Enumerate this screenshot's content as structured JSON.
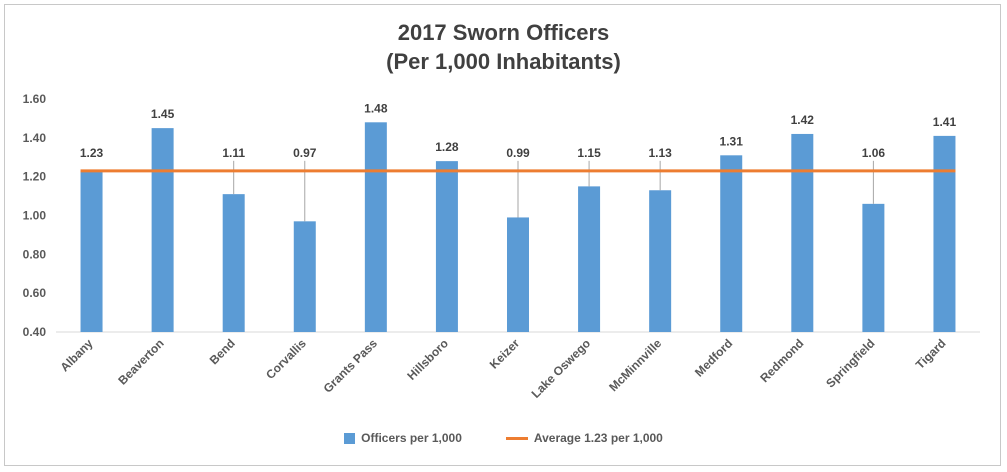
{
  "chart_data": {
    "type": "bar",
    "title_line1": "2017 Sworn Officers",
    "title_line2": "(Per 1,000 Inhabitants)",
    "categories": [
      "Albany",
      "Beaverton",
      "Bend",
      "Corvallis",
      "Grants Pass",
      "Hillsboro",
      "Keizer",
      "Lake Oswego",
      "McMinnville",
      "Medford",
      "Redmond",
      "Springfield",
      "Tigard"
    ],
    "series": [
      {
        "name": "Officers per 1,000",
        "values": [
          1.23,
          1.45,
          1.11,
          0.97,
          1.48,
          1.28,
          0.99,
          1.15,
          1.13,
          1.31,
          1.42,
          1.06,
          1.41
        ],
        "labels": [
          "1.23",
          "1.45",
          "1.11",
          "0.97",
          "1.48",
          "1.28",
          "0.99",
          "1.15",
          "1.13",
          "1.31",
          "1.42",
          "1.06",
          "1.41"
        ]
      }
    ],
    "reference_line": {
      "name": "Average 1.23 per 1,000",
      "value": 1.23
    },
    "ylim": [
      0.4,
      1.6
    ],
    "yticks": [
      "0.40",
      "0.60",
      "0.80",
      "1.00",
      "1.20",
      "1.40",
      "1.60"
    ],
    "ytick_values": [
      0.4,
      0.6,
      0.8,
      1.0,
      1.2,
      1.4,
      1.6
    ],
    "grid": false,
    "legend_position": "bottom",
    "colors": {
      "bar": "#5b9bd5",
      "average": "#ed7d31",
      "axis": "#d9d9d9",
      "text": "#595959"
    }
  }
}
